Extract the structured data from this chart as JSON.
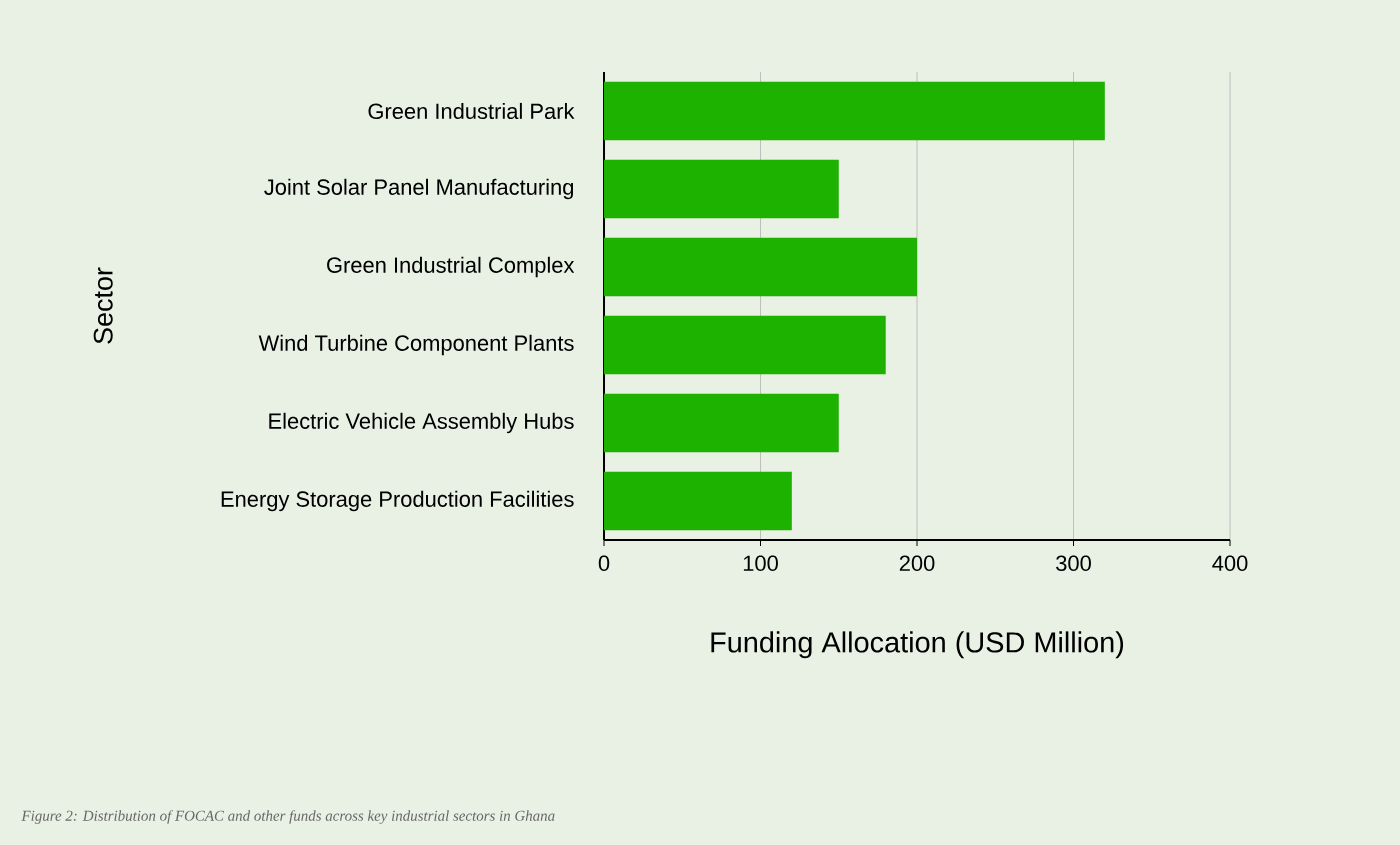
{
  "chart_data": {
    "type": "bar",
    "orientation": "horizontal",
    "categories": [
      "Green Industrial Park",
      "Joint Solar Panel Manufacturing",
      "Green Industrial Complex",
      "Wind Turbine Component Plants",
      "Electric Vehicle Assembly Hubs",
      "Energy Storage Production Facilities"
    ],
    "values": [
      320,
      150,
      200,
      180,
      150,
      120
    ],
    "color": "#1db100",
    "xlim": [
      0,
      400
    ],
    "xticks": [
      0,
      100,
      200,
      300,
      400
    ],
    "xlabel": "Funding Allocation (USD Million)",
    "ylabel": "Sector",
    "grid": "x",
    "annotations": [
      "Figure 2: Distribution of FOCAC and other funds across key industrial sectors in Ghana"
    ]
  }
}
